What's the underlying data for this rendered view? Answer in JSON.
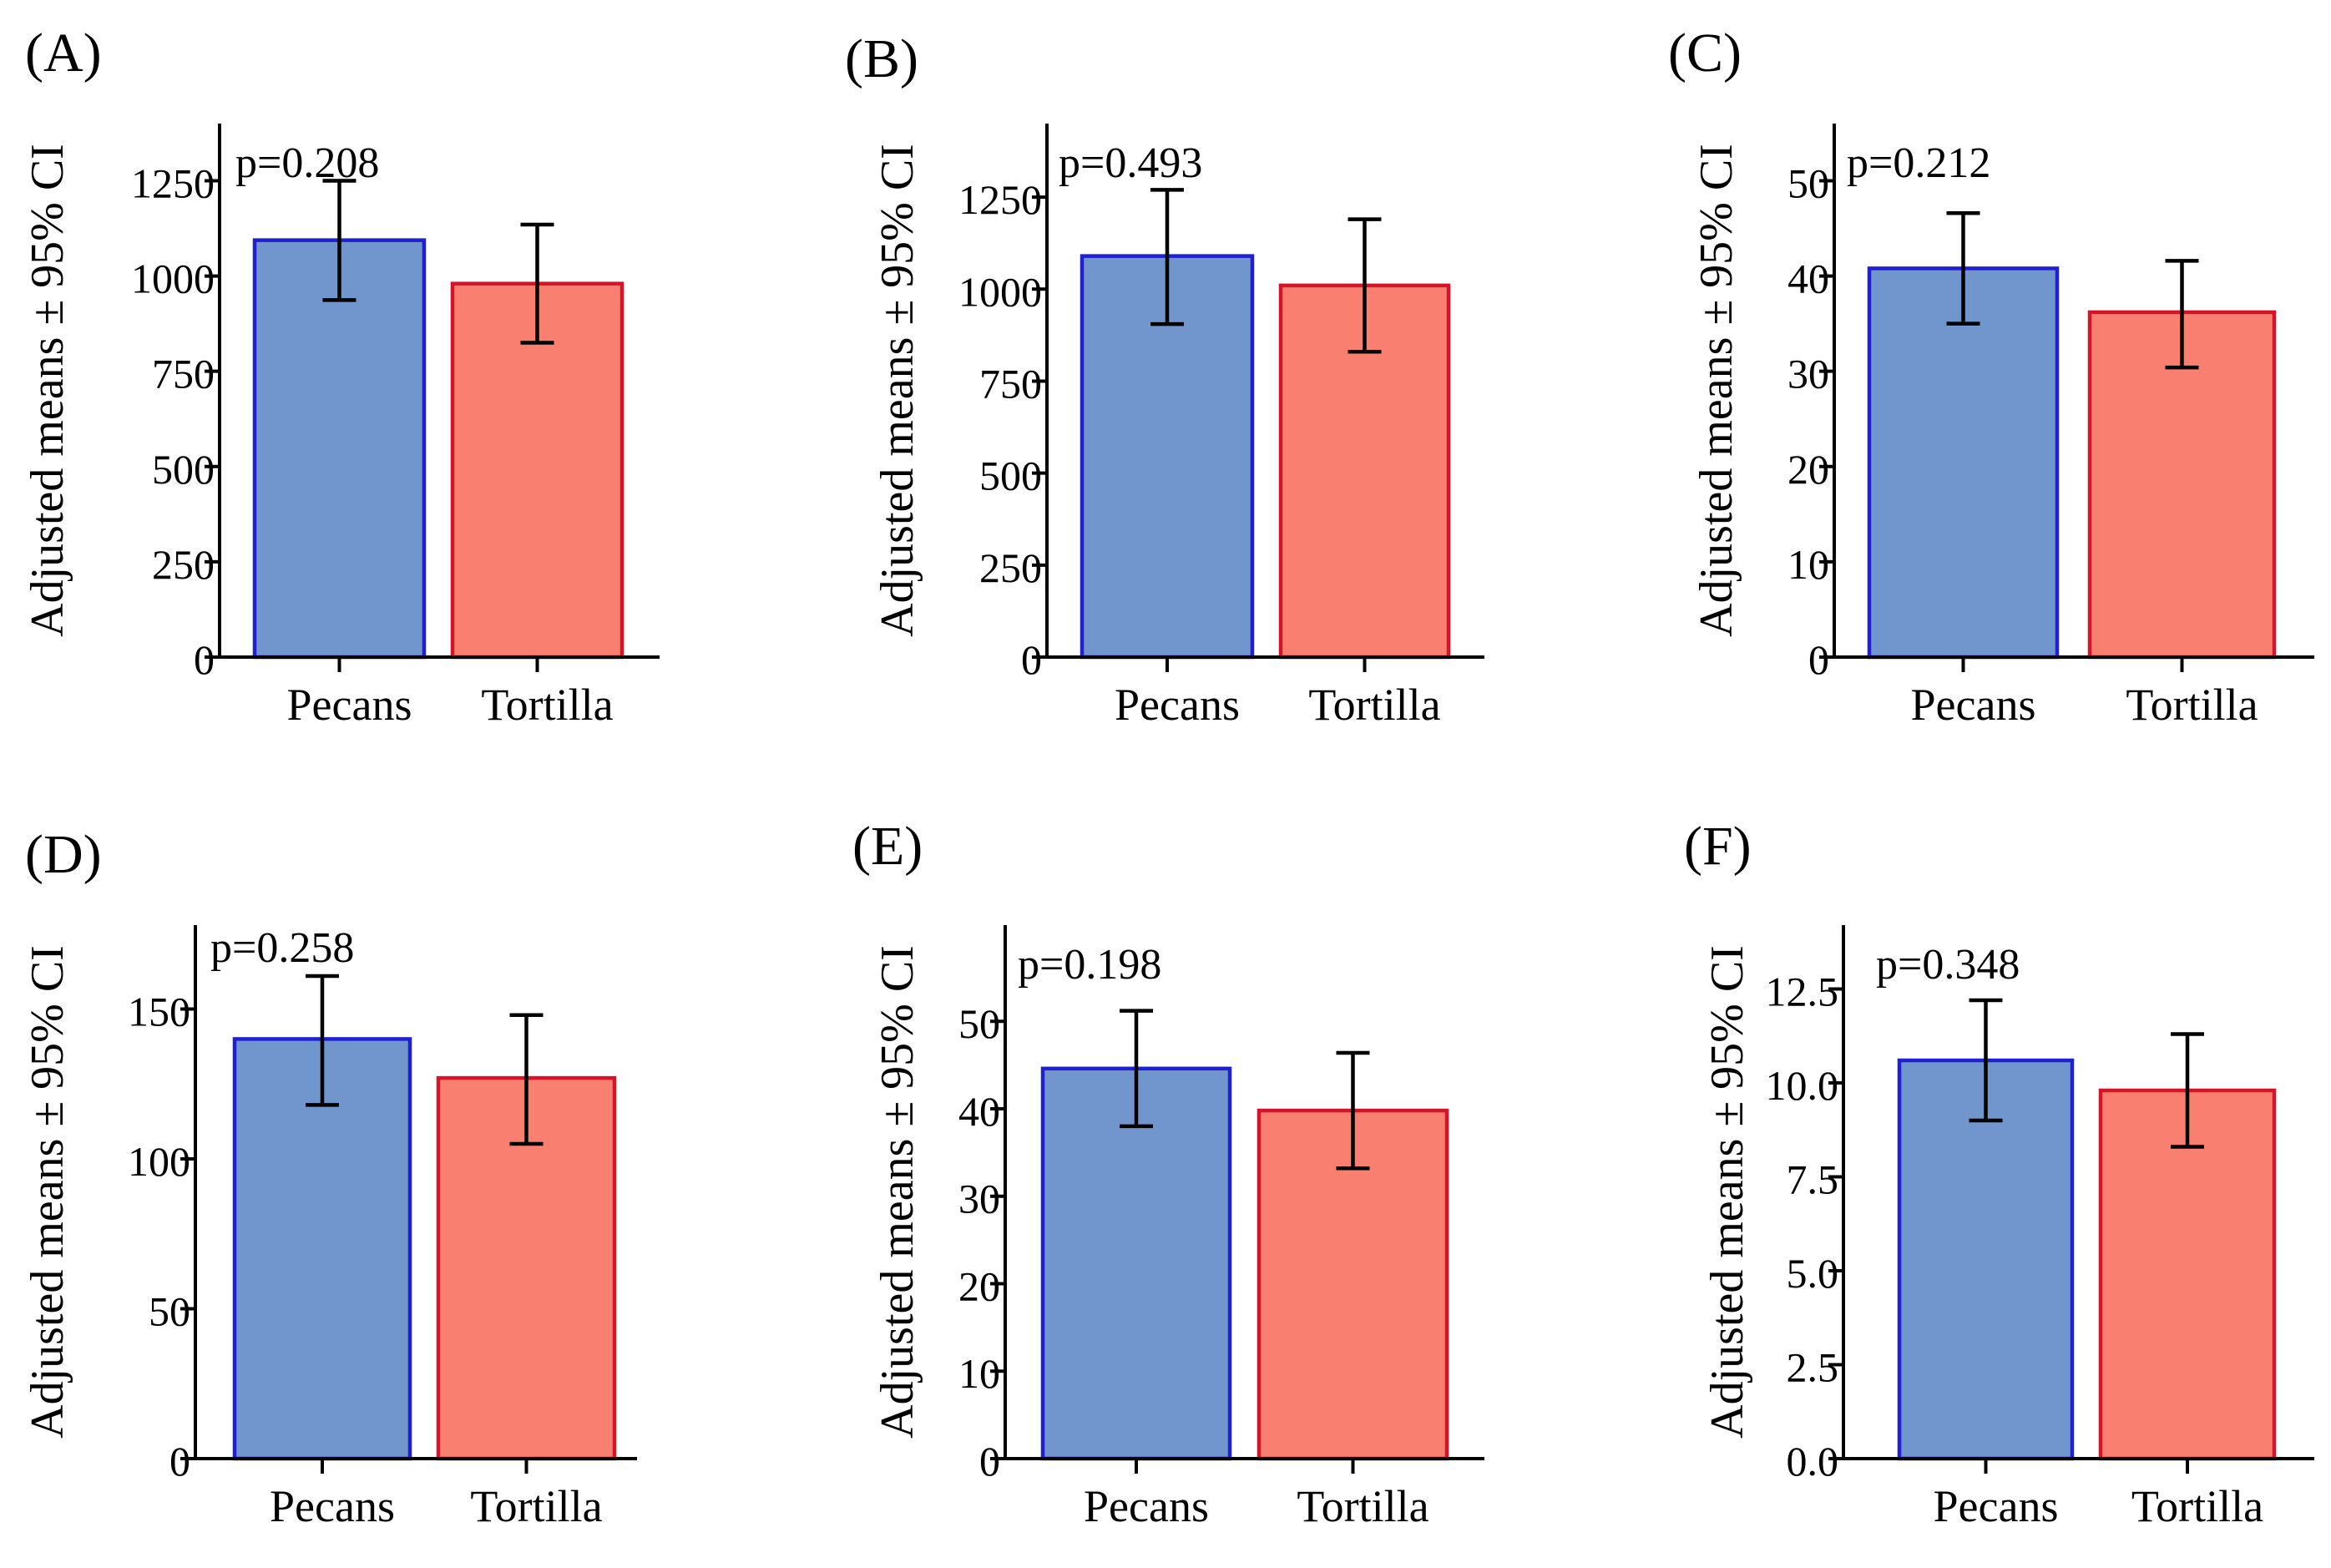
{
  "colors": {
    "pecans_fill": "#7196cd",
    "pecans_edge": "#2020d0",
    "tortilla_fill": "#f98070",
    "tortilla_edge": "#d41428"
  },
  "chart_data": [
    {
      "type": "bar",
      "panel_label": "(A)",
      "ylabel": "Adjusted means ± 95% CI",
      "categories": [
        "Pecans",
        "Tortilla"
      ],
      "values": [
        1094,
        980
      ],
      "ci_low": [
        937,
        825
      ],
      "ci_high": [
        1250,
        1135
      ],
      "p_value": "p=0.208",
      "ylim": [
        0,
        1400
      ],
      "yticks": [
        0,
        250,
        500,
        750,
        1000,
        1250
      ],
      "ytick_labels": [
        "0",
        "250",
        "500",
        "750",
        "1000",
        "1250"
      ]
    },
    {
      "type": "bar",
      "panel_label": "(B)",
      "ylabel": "Adjusted means ± 95% CI",
      "categories": [
        "Pecans",
        "Tortilla"
      ],
      "values": [
        1090,
        1010
      ],
      "ci_low": [
        905,
        830
      ],
      "ci_high": [
        1270,
        1190
      ],
      "p_value": "p=0.493",
      "ylim": [
        0,
        1450
      ],
      "yticks": [
        0,
        250,
        500,
        750,
        1000,
        1250
      ],
      "ytick_labels": [
        "0",
        "250",
        "500",
        "750",
        "1000",
        "1250"
      ]
    },
    {
      "type": "bar",
      "panel_label": "(C)",
      "ylabel": "Adjusted means ± 95% CI",
      "categories": [
        "Pecans",
        "Tortilla"
      ],
      "values": [
        40.8,
        36.2
      ],
      "ci_low": [
        35.0,
        30.4
      ],
      "ci_high": [
        46.6,
        41.6
      ],
      "p_value": "p=0.212",
      "ylim": [
        0,
        56
      ],
      "yticks": [
        0,
        10,
        20,
        30,
        40,
        50
      ],
      "ytick_labels": [
        "0",
        "10",
        "20",
        "30",
        "40",
        "50"
      ]
    },
    {
      "type": "bar",
      "panel_label": "(D)",
      "ylabel": "Adjusted means ± 95% CI",
      "categories": [
        "Pecans",
        "Tortilla"
      ],
      "values": [
        140,
        127
      ],
      "ci_low": [
        118,
        105
      ],
      "ci_high": [
        161,
        148
      ],
      "p_value": "p=0.258",
      "ylim": [
        0,
        178
      ],
      "yticks": [
        0,
        50,
        100,
        150
      ],
      "ytick_labels": [
        "0",
        "50",
        "100",
        "150"
      ]
    },
    {
      "type": "bar",
      "panel_label": "(E)",
      "ylabel": "Adjusted means ± 95% CI",
      "categories": [
        "Pecans",
        "Tortilla"
      ],
      "values": [
        44.6,
        39.8
      ],
      "ci_low": [
        38.0,
        33.2
      ],
      "ci_high": [
        51.2,
        46.4
      ],
      "p_value": "p=0.198",
      "ylim": [
        0,
        61
      ],
      "yticks": [
        0,
        10,
        20,
        30,
        40,
        50
      ],
      "ytick_labels": [
        "0",
        "10",
        "20",
        "30",
        "40",
        "50"
      ]
    },
    {
      "type": "bar",
      "panel_label": "(F)",
      "ylabel": "Adjusted means ± 95% CI",
      "categories": [
        "Pecans",
        "Tortilla"
      ],
      "values": [
        10.6,
        9.8
      ],
      "ci_low": [
        9.0,
        8.3
      ],
      "ci_high": [
        12.2,
        11.3
      ],
      "p_value": "p=0.348",
      "ylim": [
        0,
        14.2
      ],
      "yticks": [
        0,
        2.5,
        5.0,
        7.5,
        10.0,
        12.5
      ],
      "ytick_labels": [
        "0.0",
        "2.5",
        "5.0",
        "7.5",
        "10.0",
        "12.5"
      ]
    }
  ]
}
